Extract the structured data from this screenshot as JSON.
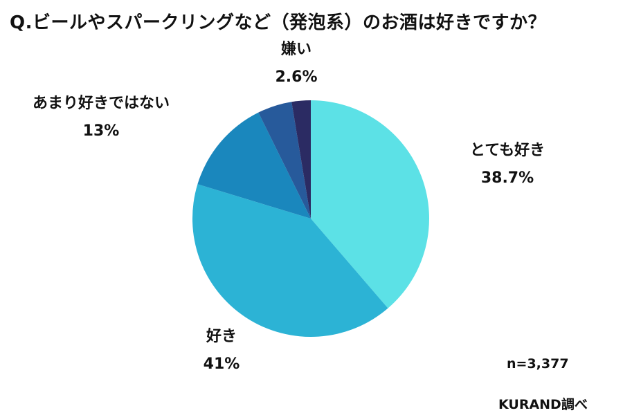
{
  "title": "Q.ビールやスパークリングなど（発泡系）のお酒は好きですか？",
  "sample_size": "n=3,377",
  "source": "KURAND調べ",
  "chart_data": {
    "type": "pie",
    "title": "Q.ビールやスパークリングなど（発泡系）のお酒は好きですか？",
    "slices": [
      {
        "label": "とても好き",
        "value": 38.7,
        "display": "38.7%",
        "color": "#5ce1e6"
      },
      {
        "label": "好き",
        "value": 41,
        "display": "41%",
        "color": "#2cb3d5"
      },
      {
        "label": "あまり好きではない",
        "value": 13,
        "display": "13%",
        "color": "#1a87bd"
      },
      {
        "label": "",
        "value": 4.7,
        "display": "",
        "color": "#275a9b"
      },
      {
        "label": "嫌い",
        "value": 2.6,
        "display": "2.6%",
        "color": "#2b2b63"
      }
    ],
    "start": "12 o'clock",
    "direction": "clockwise"
  }
}
